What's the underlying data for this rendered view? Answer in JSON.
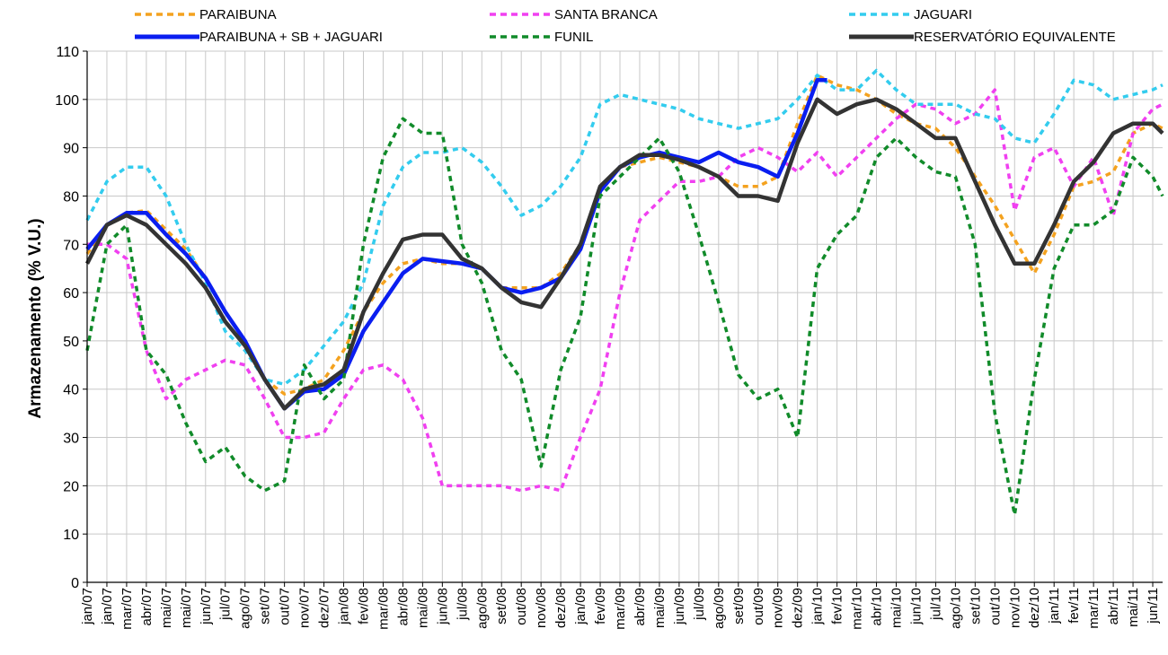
{
  "chart_data": {
    "type": "line",
    "ylabel": "Armazenamento (% V.U.)",
    "xlabel": "",
    "ylim": [
      0,
      110
    ],
    "yticks": [
      0,
      10,
      20,
      30,
      40,
      50,
      60,
      70,
      80,
      90,
      100,
      110
    ],
    "grid": true,
    "legend_position": "top",
    "x_tick_labels": [
      "jan/07",
      "jan/07",
      "mar/07",
      "abr/07",
      "mai/07",
      "mai/07",
      "jun/07",
      "jul/07",
      "ago/07",
      "set/07",
      "out/07",
      "nov/07",
      "dez/07",
      "jan/08",
      "fev/08",
      "mar/08",
      "abr/08",
      "mai/08",
      "jun/08",
      "jul/08",
      "ago/08",
      "set/08",
      "out/08",
      "nov/08",
      "dez/08",
      "jan/09",
      "fev/09",
      "mar/09",
      "abr/09",
      "mai/09",
      "jun/09",
      "jul/09",
      "ago/09",
      "set/09",
      "out/09",
      "nov/09",
      "dez/09",
      "jan/10",
      "fev/10",
      "mar/10",
      "abr/10",
      "mai/10",
      "jun/10",
      "jul/10",
      "ago/10",
      "set/10",
      "out/10",
      "nov/10",
      "dez/10",
      "jan/11",
      "fev/11",
      "mar/11",
      "abr/11",
      "mai/11",
      "jun/11"
    ],
    "x_unit": "months since jan/07",
    "x_range": [
      0,
      54.5
    ],
    "series": [
      {
        "name": "PARAIBUNA",
        "color": "#F4A21F",
        "style": "dashed",
        "x": [
          0,
          1,
          2,
          3,
          4,
          5,
          6,
          7,
          8,
          9,
          10,
          11,
          12,
          13,
          14,
          15,
          16,
          17,
          18,
          19,
          20,
          21,
          22,
          23,
          24,
          25,
          26,
          27,
          28,
          29,
          30,
          31,
          32,
          33,
          34,
          35,
          36,
          37,
          38,
          39,
          40,
          41,
          42,
          43,
          44,
          45,
          46,
          47,
          48,
          49,
          50,
          51,
          52,
          53,
          54,
          54.5
        ],
        "values": [
          68,
          74,
          76.5,
          77,
          73,
          69,
          63,
          56,
          50,
          42,
          39,
          40,
          42,
          48,
          56,
          62,
          66,
          67,
          66,
          66,
          65,
          61,
          61,
          61,
          64,
          70,
          81,
          86,
          87,
          88,
          87,
          86,
          84,
          82,
          82,
          84,
          95,
          105,
          103,
          102,
          100,
          97,
          95,
          94,
          90,
          84,
          78,
          71,
          64,
          72,
          82,
          83,
          85,
          93,
          95,
          94
        ]
      },
      {
        "name": "SANTA BRANCA",
        "color": "#F040F0",
        "style": "dashed",
        "x": [
          0,
          1,
          2,
          3,
          4,
          5,
          6,
          7,
          8,
          9,
          10,
          11,
          12,
          13,
          14,
          15,
          16,
          17,
          18,
          19,
          20,
          21,
          22,
          23,
          24,
          25,
          26,
          27,
          28,
          29,
          30,
          31,
          32,
          33,
          34,
          35,
          36,
          37,
          38,
          39,
          40,
          41,
          42,
          43,
          44,
          45,
          46,
          47,
          48,
          49,
          50,
          51,
          52,
          53,
          54,
          54.5
        ],
        "values": [
          70,
          70,
          67,
          48,
          38,
          42,
          44,
          46,
          45,
          38,
          30,
          30,
          31,
          38,
          44,
          45,
          42,
          34,
          20,
          20,
          20,
          20,
          19,
          20,
          19,
          30,
          40,
          60,
          75,
          79,
          83,
          83,
          84,
          88,
          90,
          88,
          85,
          89,
          84,
          88,
          92,
          96,
          99,
          98,
          95,
          97,
          102,
          77,
          88,
          90,
          82,
          88,
          76,
          93,
          98,
          99
        ]
      },
      {
        "name": "JAGUARI",
        "color": "#33CCEE",
        "style": "dashed",
        "x": [
          0,
          1,
          2,
          3,
          4,
          5,
          6,
          7,
          8,
          9,
          10,
          11,
          12,
          13,
          14,
          15,
          16,
          17,
          18,
          19,
          20,
          21,
          22,
          23,
          24,
          25,
          26,
          27,
          28,
          29,
          30,
          31,
          32,
          33,
          34,
          35,
          36,
          37,
          38,
          39,
          40,
          41,
          42,
          43,
          44,
          45,
          46,
          47,
          48,
          49,
          50,
          51,
          52,
          53,
          54,
          54.5
        ],
        "values": [
          75,
          83,
          86,
          86,
          80,
          70,
          62,
          52,
          48,
          42,
          41,
          44,
          49,
          54,
          62,
          78,
          86,
          89,
          89,
          90,
          87,
          82,
          76,
          78,
          82,
          88,
          99,
          101,
          100,
          99,
          98,
          96,
          95,
          94,
          95,
          96,
          100,
          105,
          102,
          102,
          106,
          102,
          99,
          99,
          99,
          97,
          96,
          92,
          91,
          97,
          104,
          103,
          100,
          101,
          102,
          103
        ]
      },
      {
        "name": "PARAIBUNA + SB + JAGUARI",
        "color": "#0A1EF0",
        "style": "solid",
        "x": [
          0,
          1,
          2,
          3,
          4,
          5,
          6,
          7,
          8,
          9,
          10,
          11,
          12,
          13,
          14,
          15,
          16,
          17,
          18,
          19,
          20,
          21,
          22,
          23,
          24,
          25,
          26,
          27,
          28,
          29,
          30,
          31,
          32,
          33,
          34,
          35,
          36,
          37,
          37.5
        ],
        "values": [
          69,
          74,
          76.5,
          76.5,
          72,
          68,
          63,
          56,
          50,
          42,
          36,
          39.5,
          40,
          43,
          52,
          58,
          64,
          67,
          66.5,
          66,
          65,
          61,
          60,
          61,
          63,
          69,
          81,
          86,
          88,
          89,
          88,
          87,
          89,
          87,
          86,
          84,
          93,
          104,
          104
        ]
      },
      {
        "name": "FUNIL",
        "color": "#118B2A",
        "style": "dashed",
        "x": [
          0,
          1,
          2,
          3,
          4,
          5,
          6,
          7,
          8,
          9,
          10,
          11,
          12,
          13,
          14,
          15,
          16,
          17,
          18,
          19,
          20,
          21,
          22,
          23,
          24,
          25,
          26,
          27,
          28,
          29,
          30,
          31,
          32,
          33,
          34,
          35,
          36,
          37,
          38,
          39,
          40,
          41,
          42,
          43,
          44,
          45,
          46,
          47,
          48,
          49,
          50,
          51,
          52,
          53,
          54,
          54.5
        ],
        "values": [
          48,
          70,
          74,
          48,
          43,
          33,
          25,
          28,
          22,
          19,
          21,
          45,
          38,
          42,
          70,
          88,
          96,
          93,
          93,
          70,
          62,
          48,
          42,
          24,
          44,
          55,
          80,
          84,
          88,
          92,
          85,
          72,
          58,
          43,
          38,
          40,
          30,
          65,
          72,
          76,
          88,
          92,
          88,
          85,
          84,
          70,
          35,
          14,
          42,
          65,
          74,
          74,
          77,
          88,
          84,
          80
        ]
      },
      {
        "name": "RESERVATÓRIO EQUIVALENTE",
        "color": "#333333",
        "style": "solid",
        "x": [
          0,
          1,
          2,
          3,
          4,
          5,
          6,
          7,
          8,
          9,
          10,
          11,
          12,
          13,
          14,
          15,
          16,
          17,
          18,
          19,
          20,
          21,
          22,
          23,
          24,
          25,
          26,
          27,
          28,
          29,
          30,
          31,
          32,
          33,
          34,
          35,
          36,
          37,
          38,
          39,
          40,
          41,
          42,
          43,
          44,
          45,
          46,
          47,
          48,
          49,
          50,
          51,
          52,
          53,
          54,
          54.5
        ],
        "values": [
          66,
          74,
          76,
          74,
          70,
          66,
          61,
          54,
          49,
          42,
          36,
          40,
          41,
          44,
          56,
          64,
          71,
          72,
          72,
          67,
          65,
          61,
          58,
          57,
          63,
          70,
          82,
          86,
          88.5,
          88.5,
          87.5,
          86,
          84,
          80,
          80,
          79,
          91,
          100,
          97,
          99,
          100,
          98,
          95,
          92,
          92,
          83,
          74,
          66,
          66,
          74,
          83,
          87,
          93,
          95,
          95,
          93
        ]
      }
    ]
  },
  "legend": {
    "items": [
      {
        "label": "PARAIBUNA",
        "color": "#F4A21F",
        "style": "dashed"
      },
      {
        "label": "SANTA BRANCA",
        "color": "#F040F0",
        "style": "dashed"
      },
      {
        "label": "JAGUARI",
        "color": "#33CCEE",
        "style": "dashed"
      },
      {
        "label": "PARAIBUNA + SB + JAGUARI",
        "color": "#0A1EF0",
        "style": "solid"
      },
      {
        "label": "FUNIL",
        "color": "#118B2A",
        "style": "dashed"
      },
      {
        "label": "RESERVATÓRIO EQUIVALENTE",
        "color": "#333333",
        "style": "solid"
      }
    ]
  }
}
